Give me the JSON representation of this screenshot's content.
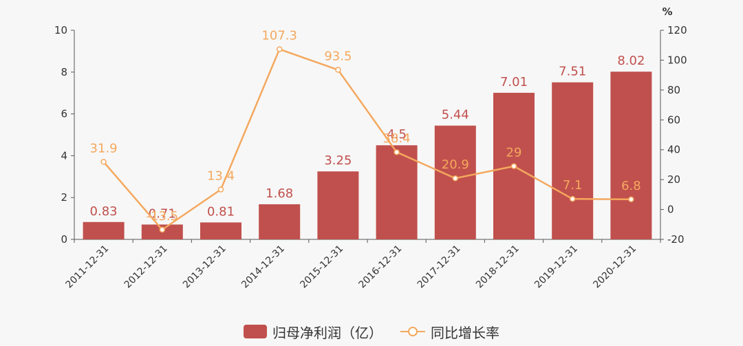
{
  "chart_data": {
    "type": "bar",
    "categories": [
      "2011-12-31",
      "2012-12-31",
      "2013-12-31",
      "2014-12-31",
      "2015-12-31",
      "2016-12-31",
      "2017-12-31",
      "2018-12-31",
      "2019-12-31",
      "2020-12-31"
    ],
    "series": [
      {
        "name": "归母净利润（亿）",
        "type": "bar",
        "axis": "left",
        "color": "#c0504d",
        "label_color": "#c0504d",
        "values": [
          0.83,
          0.71,
          0.81,
          1.68,
          3.25,
          4.5,
          5.44,
          7.01,
          7.51,
          8.02
        ]
      },
      {
        "name": "同比增长率",
        "type": "line",
        "axis": "right",
        "color": "#f4a85e",
        "label_color": "#f4a85e",
        "values": [
          31.9,
          -13.5,
          13.4,
          107.3,
          93.5,
          38.4,
          20.9,
          29,
          7.1,
          6.8
        ]
      }
    ],
    "y_left": {
      "ylim": [
        0,
        10
      ],
      "ticks": [
        "0",
        "2",
        "4",
        "6",
        "8",
        "10"
      ]
    },
    "y_right": {
      "ylim": [
        -20,
        120
      ],
      "ticks": [
        "-20",
        "0",
        "20",
        "40",
        "60",
        "80",
        "100",
        "120"
      ],
      "unit": "%"
    },
    "grid": false,
    "legend_position": "bottom-center"
  }
}
